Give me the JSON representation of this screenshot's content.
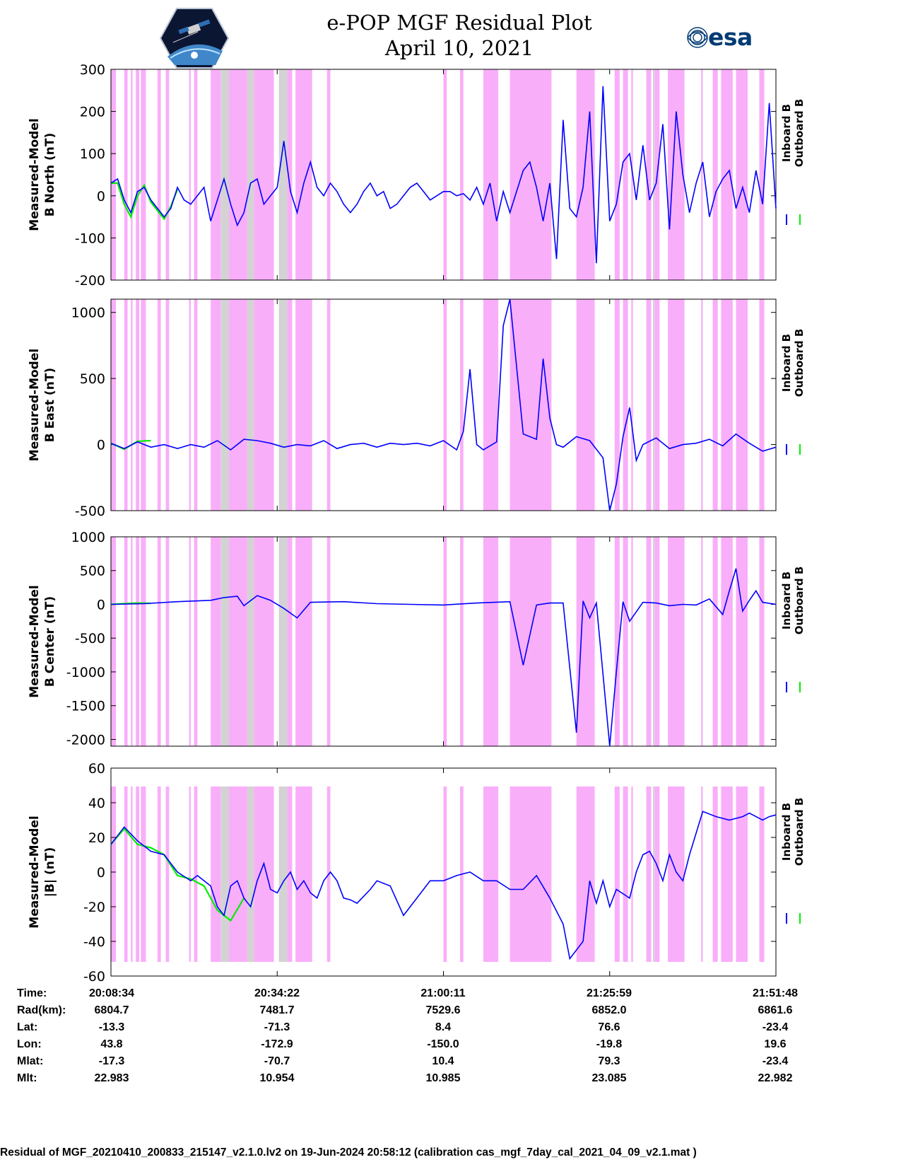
{
  "title": {
    "line1": "e-POP MGF Residual Plot",
    "line2": "April 10, 2021"
  },
  "logos": {
    "left": "cassiope-satellite-logo",
    "right_text": "esa",
    "colors": {
      "esa_blue": "#003b73"
    }
  },
  "colors": {
    "inboard": "#0000ff",
    "outboard": "#00ee00",
    "shade_magenta": "#f9aef9",
    "shade_gray": "#d3d3d3"
  },
  "shading": {
    "magenta_intervals_min": [
      [
        0,
        1.5
      ],
      [
        4,
        5
      ],
      [
        6,
        6.5
      ],
      [
        7.5,
        8.5
      ],
      [
        9,
        10.5
      ],
      [
        14,
        15
      ],
      [
        16.5,
        17.5
      ],
      [
        23.5,
        24
      ],
      [
        25,
        26
      ],
      [
        30,
        33
      ],
      [
        35.5,
        41
      ],
      [
        43,
        49
      ],
      [
        53,
        54.5
      ],
      [
        55.5,
        60.5
      ],
      [
        65,
        66
      ],
      [
        100,
        101
      ],
      [
        105,
        106
      ],
      [
        112,
        116.5
      ],
      [
        120,
        132.5
      ],
      [
        140,
        145.5
      ],
      [
        151.5,
        153
      ],
      [
        154,
        155.5
      ],
      [
        156.5,
        157
      ],
      [
        161,
        162.5
      ],
      [
        163.5,
        165
      ],
      [
        167.5,
        172.5
      ],
      [
        177.5,
        178
      ],
      [
        181,
        182.5
      ],
      [
        183.5,
        187
      ],
      [
        188,
        191.5
      ],
      [
        195,
        196.5
      ]
    ],
    "gray_intervals_min": [
      [
        33,
        35.5
      ],
      [
        41,
        43
      ],
      [
        50.5,
        53
      ],
      [
        163,
        163.5
      ]
    ]
  },
  "chart_data": [
    {
      "type": "line",
      "ylabel": "Measured-Model\nB North (nT)",
      "ylabel_line1": "Measured-Model",
      "ylabel_line2": "B North (nT)",
      "ylim": [
        -200,
        300
      ],
      "yticks": [
        -200,
        -100,
        0,
        100,
        200,
        300
      ],
      "legend": [
        "Inboard B",
        "Outboard B"
      ],
      "series": [
        {
          "name": "Inboard B",
          "x": [
            0,
            2,
            4,
            6,
            8,
            10,
            12,
            14,
            16,
            18,
            20,
            22,
            24,
            26,
            28,
            30,
            32,
            34,
            36,
            38,
            40,
            42,
            44,
            46,
            48,
            50,
            52,
            54,
            56,
            58,
            60,
            62,
            64,
            66,
            68,
            70,
            72,
            74,
            76,
            78,
            80,
            82,
            84,
            86,
            88,
            90,
            92,
            94,
            96,
            98,
            100,
            102,
            104,
            106,
            108,
            110,
            112,
            114,
            116,
            118,
            120,
            122,
            124,
            126,
            128,
            130,
            132,
            134,
            136,
            138,
            140,
            142,
            144,
            146,
            148,
            150,
            152,
            154,
            156,
            158,
            160,
            162,
            164,
            166,
            168,
            170,
            172,
            174,
            176,
            178,
            180,
            182,
            184,
            186,
            188,
            190,
            192,
            194,
            196,
            198,
            200
          ],
          "values": [
            30,
            40,
            -10,
            -40,
            10,
            20,
            -10,
            -30,
            -50,
            -30,
            20,
            -10,
            -20,
            0,
            20,
            -60,
            -10,
            40,
            -20,
            -70,
            -40,
            30,
            40,
            -20,
            0,
            20,
            130,
            10,
            -40,
            30,
            80,
            20,
            0,
            30,
            10,
            -20,
            -40,
            -20,
            10,
            30,
            0,
            10,
            -30,
            -20,
            0,
            20,
            30,
            10,
            -10,
            0,
            10,
            10,
            0,
            5,
            -10,
            20,
            -20,
            30,
            -60,
            10,
            -40,
            10,
            60,
            80,
            20,
            -60,
            30,
            -150,
            180,
            -30,
            -50,
            20,
            200,
            -160,
            260,
            -60,
            -20,
            80,
            100,
            -10,
            120,
            -10,
            30,
            170,
            -80,
            200,
            50,
            -40,
            30,
            80,
            -50,
            10,
            40,
            60,
            -30,
            20,
            -40,
            60,
            -20,
            220,
            -30
          ]
        },
        {
          "name": "Outboard B",
          "x": [
            0,
            2,
            4,
            6,
            8,
            10,
            12,
            14,
            16,
            18,
            20
          ],
          "values": [
            30,
            30,
            -20,
            -50,
            0,
            25,
            -15,
            -35,
            -55,
            -25,
            15
          ]
        }
      ]
    },
    {
      "type": "line",
      "ylabel": "Measured-Model\nB East (nT)",
      "ylabel_line1": "Measured-Model",
      "ylabel_line2": "B East (nT)",
      "ylim": [
        -500,
        1100
      ],
      "yticks": [
        -500,
        0,
        500,
        1000
      ],
      "legend": [
        "Inboard B",
        "Outboard B"
      ],
      "series": [
        {
          "name": "Inboard B",
          "x": [
            0,
            4,
            8,
            12,
            16,
            20,
            24,
            28,
            32,
            36,
            40,
            44,
            48,
            52,
            56,
            60,
            64,
            68,
            72,
            76,
            80,
            84,
            88,
            92,
            96,
            100,
            104,
            106,
            108,
            110,
            112,
            116,
            118,
            120,
            124,
            128,
            130,
            132,
            134,
            136,
            140,
            144,
            148,
            150,
            152,
            154,
            156,
            158,
            160,
            164,
            168,
            172,
            176,
            180,
            184,
            188,
            192,
            196,
            200
          ],
          "values": [
            10,
            -30,
            20,
            -20,
            0,
            -30,
            0,
            -20,
            30,
            -40,
            40,
            30,
            10,
            -20,
            0,
            -10,
            30,
            -30,
            0,
            10,
            -20,
            10,
            0,
            10,
            -10,
            30,
            -40,
            100,
            570,
            0,
            -40,
            20,
            900,
            1100,
            80,
            40,
            650,
            200,
            0,
            -20,
            60,
            30,
            -100,
            -500,
            -300,
            60,
            280,
            -120,
            0,
            50,
            -30,
            0,
            10,
            40,
            -10,
            80,
            10,
            -50,
            -20
          ]
        },
        {
          "name": "Outboard B",
          "x": [
            0,
            4,
            8,
            12
          ],
          "values": [
            10,
            -35,
            25,
            30
          ]
        }
      ]
    },
    {
      "type": "line",
      "ylabel": "Measured-Model\nB Center (nT)",
      "ylabel_line1": "Measured-Model",
      "ylabel_line2": "B Center (nT)",
      "ylim": [
        -2100,
        1000
      ],
      "yticks": [
        -2000,
        -1500,
        -1000,
        -500,
        0,
        500,
        1000
      ],
      "legend": [
        "Inboard B",
        "Outboard B"
      ],
      "series": [
        {
          "name": "Inboard B",
          "x": [
            0,
            10,
            20,
            30,
            34,
            38,
            40,
            44,
            48,
            52,
            56,
            60,
            70,
            80,
            90,
            100,
            110,
            120,
            124,
            128,
            132,
            136,
            140,
            142,
            144,
            146,
            150,
            152,
            154,
            156,
            160,
            164,
            168,
            172,
            176,
            180,
            184,
            186,
            188,
            190,
            192,
            194,
            196,
            200
          ],
          "values": [
            0,
            10,
            40,
            60,
            100,
            120,
            -20,
            130,
            60,
            -60,
            -200,
            30,
            40,
            10,
            0,
            -10,
            20,
            40,
            -900,
            -10,
            20,
            20,
            -1900,
            50,
            -200,
            20,
            -2100,
            -1000,
            40,
            -250,
            30,
            20,
            -20,
            0,
            -10,
            80,
            -150,
            200,
            530,
            -100,
            60,
            200,
            30,
            0
          ]
        },
        {
          "name": "Outboard B",
          "x": [
            0,
            4,
            8,
            12
          ],
          "values": [
            0,
            10,
            20,
            15
          ]
        }
      ]
    },
    {
      "type": "line",
      "ylabel": "Measured-Model\n|B| (nT)",
      "ylabel_line1": "Measured-Model",
      "ylabel_line2": "|B| (nT)",
      "ylim": [
        -60,
        60
      ],
      "yticks": [
        -60,
        -40,
        -20,
        0,
        20,
        40,
        60
      ],
      "legend": [
        "Inboard B",
        "Outboard B"
      ],
      "series": [
        {
          "name": "Inboard B",
          "x": [
            0,
            4,
            8,
            12,
            16,
            20,
            24,
            26,
            28,
            30,
            32,
            34,
            36,
            38,
            40,
            42,
            44,
            46,
            48,
            50,
            52,
            54,
            56,
            58,
            60,
            62,
            64,
            66,
            68,
            70,
            72,
            74,
            76,
            78,
            80,
            84,
            88,
            92,
            94,
            96,
            100,
            104,
            108,
            112,
            116,
            120,
            124,
            128,
            132,
            136,
            138,
            140,
            142,
            144,
            146,
            148,
            150,
            152,
            156,
            158,
            160,
            162,
            164,
            166,
            168,
            170,
            172,
            174,
            178,
            182,
            186,
            190,
            192,
            194,
            196,
            198,
            200
          ],
          "values": [
            16,
            26,
            18,
            12,
            10,
            0,
            -5,
            -2,
            -5,
            -8,
            -20,
            -25,
            -8,
            -5,
            -15,
            -20,
            -5,
            5,
            -10,
            -12,
            -5,
            0,
            -10,
            -5,
            -12,
            -15,
            -5,
            0,
            -5,
            -15,
            -16,
            -18,
            -14,
            -10,
            -5,
            -8,
            -25,
            -15,
            -10,
            -5,
            -5,
            -2,
            0,
            -5,
            -5,
            -10,
            -10,
            -2,
            -15,
            -30,
            -50,
            -45,
            -40,
            -5,
            -18,
            -5,
            -20,
            -10,
            -15,
            0,
            10,
            12,
            5,
            -5,
            10,
            0,
            -5,
            10,
            35,
            32,
            30,
            32,
            34,
            32,
            30,
            32,
            33
          ]
        },
        {
          "name": "Outboard B",
          "x": [
            0,
            4,
            8,
            12,
            16,
            20,
            24,
            28,
            32,
            36,
            40
          ],
          "values": [
            16,
            25,
            16,
            14,
            10,
            -2,
            -4,
            -8,
            -22,
            -28,
            -15
          ]
        }
      ]
    }
  ],
  "x_axis": {
    "range_min": [
      0,
      200
    ],
    "tick_min": [
      0,
      50,
      100,
      150,
      200
    ]
  },
  "info_table": {
    "rows": [
      {
        "label": "Time:",
        "values": [
          "20:08:34",
          "20:34:22",
          "21:00:11",
          "21:25:59",
          "21:51:48"
        ]
      },
      {
        "label": "Rad(km):",
        "values": [
          "6804.7",
          "7481.7",
          "7529.6",
          "6852.0",
          "6861.6"
        ]
      },
      {
        "label": "Lat:",
        "values": [
          "-13.3",
          "-71.3",
          "8.4",
          "76.6",
          "-23.4"
        ]
      },
      {
        "label": "Lon:",
        "values": [
          "43.8",
          "-172.9",
          "-150.0",
          "-19.8",
          "19.6"
        ]
      },
      {
        "label": "Mlat:",
        "values": [
          "-17.3",
          "-70.7",
          "10.4",
          "79.3",
          "-23.4"
        ]
      },
      {
        "label": "Mlt:",
        "values": [
          "22.983",
          "10.954",
          "10.985",
          "23.085",
          "22.982"
        ]
      }
    ]
  },
  "footer": "Residual of MGF_20210410_200833_215147_v2.1.0.lv2 on 19-Jun-2024 20:58:12 (calibration cas_mgf_7day_cal_2021_04_09_v2.1.mat )"
}
